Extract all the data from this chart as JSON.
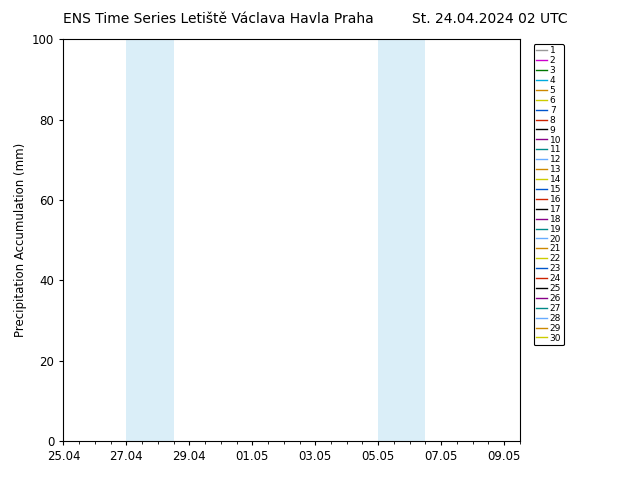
{
  "title_left": "ENS Time Series Letiště Václava Havla Praha",
  "title_right": "St. 24.04.2024 02 UTC",
  "ylabel": "Precipitation Accumulation (mm)",
  "ylim": [
    0,
    100
  ],
  "yticks": [
    0,
    20,
    40,
    60,
    80,
    100
  ],
  "xtick_labels": [
    "25.04",
    "27.04",
    "29.04",
    "01.05",
    "03.05",
    "05.05",
    "07.05",
    "09.05"
  ],
  "xtick_positions": [
    0,
    2,
    4,
    6,
    8,
    10,
    12,
    14
  ],
  "xlim": [
    0,
    14
  ],
  "shade_regions": [
    {
      "x_start": 2,
      "x_end": 3.5
    },
    {
      "x_start": 10,
      "x_end": 11.5
    }
  ],
  "shade_color": "#daeef8",
  "legend_colors": [
    "#999999",
    "#cc00cc",
    "#007700",
    "#00aadd",
    "#cc8800",
    "#cccc00",
    "#0055cc",
    "#cc2200",
    "#000000",
    "#880088",
    "#008888",
    "#66aaff",
    "#cc8800",
    "#cccc00",
    "#0055cc",
    "#cc2200",
    "#000000",
    "#880088",
    "#008888",
    "#66aaff",
    "#cc8800",
    "#cccc00",
    "#0055cc",
    "#cc2200",
    "#000000",
    "#880088",
    "#008888",
    "#66aaff",
    "#cc8800",
    "#cccc00"
  ],
  "legend_labels": [
    "1",
    "2",
    "3",
    "4",
    "5",
    "6",
    "7",
    "8",
    "9",
    "10",
    "11",
    "12",
    "13",
    "14",
    "15",
    "16",
    "17",
    "18",
    "19",
    "20",
    "21",
    "22",
    "23",
    "24",
    "25",
    "26",
    "27",
    "28",
    "29",
    "30"
  ],
  "num_series": 30,
  "background_color": "#ffffff",
  "plot_bg_color": "#ffffff",
  "title_fontsize": 10,
  "tick_fontsize": 8.5,
  "legend_fontsize": 6.5
}
